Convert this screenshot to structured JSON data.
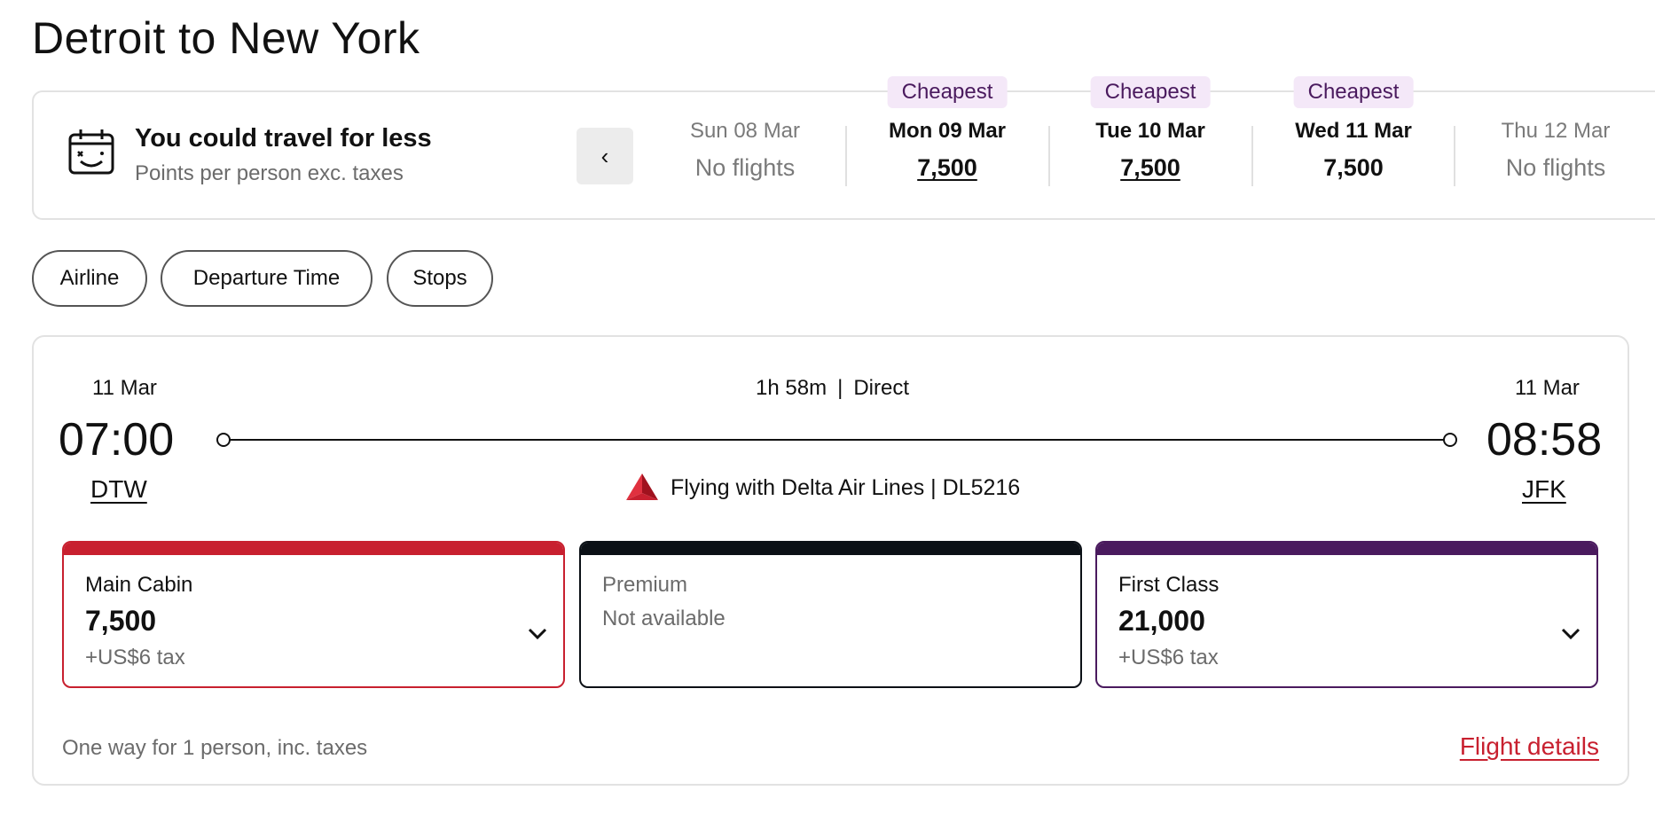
{
  "page": {
    "title": "Detroit to New York"
  },
  "flex_dates": {
    "promo_title": "You could travel for less",
    "promo_sub": "Points per person exc. taxes",
    "prev_label": "‹",
    "dates": [
      {
        "label": "Sun 08 Mar",
        "value": "No flights",
        "badge": ""
      },
      {
        "label": "Mon 09 Mar",
        "value": "7,500",
        "badge": "Cheapest"
      },
      {
        "label": "Tue 10 Mar",
        "value": "7,500",
        "badge": "Cheapest"
      },
      {
        "label": "Wed 11 Mar",
        "value": "7,500",
        "badge": "Cheapest"
      },
      {
        "label": "Thu 12 Mar",
        "value": "No flights",
        "badge": ""
      }
    ]
  },
  "filters": [
    "Airline",
    "Departure Time",
    "Stops"
  ],
  "flight": {
    "departure": {
      "date": "11 Mar",
      "time": "07:00",
      "airport": "DTW"
    },
    "arrival": {
      "date": "11 Mar",
      "time": "08:58",
      "airport": "JFK"
    },
    "duration": "1h 58m",
    "stops": "Direct",
    "operator": "Flying with Delta Air Lines | DL5216",
    "fares": [
      {
        "name": "Main Cabin",
        "price": "7,500",
        "tax": "+US$6 tax",
        "status": "",
        "color": "#c8202f"
      },
      {
        "name": "Premium",
        "price": "",
        "tax": "",
        "status": "Not available",
        "color": "#0b1016"
      },
      {
        "name": "First Class",
        "price": "21,000",
        "tax": "+US$6 tax",
        "status": "",
        "color": "#4a1a5e"
      }
    ],
    "footer_note": "One way for 1 person, inc. taxes",
    "details_link": "Flight details"
  },
  "colors": {
    "accent_red": "#c8202f",
    "accent_purple": "#4a1a5e",
    "badge_bg": "#f4e8f8"
  }
}
